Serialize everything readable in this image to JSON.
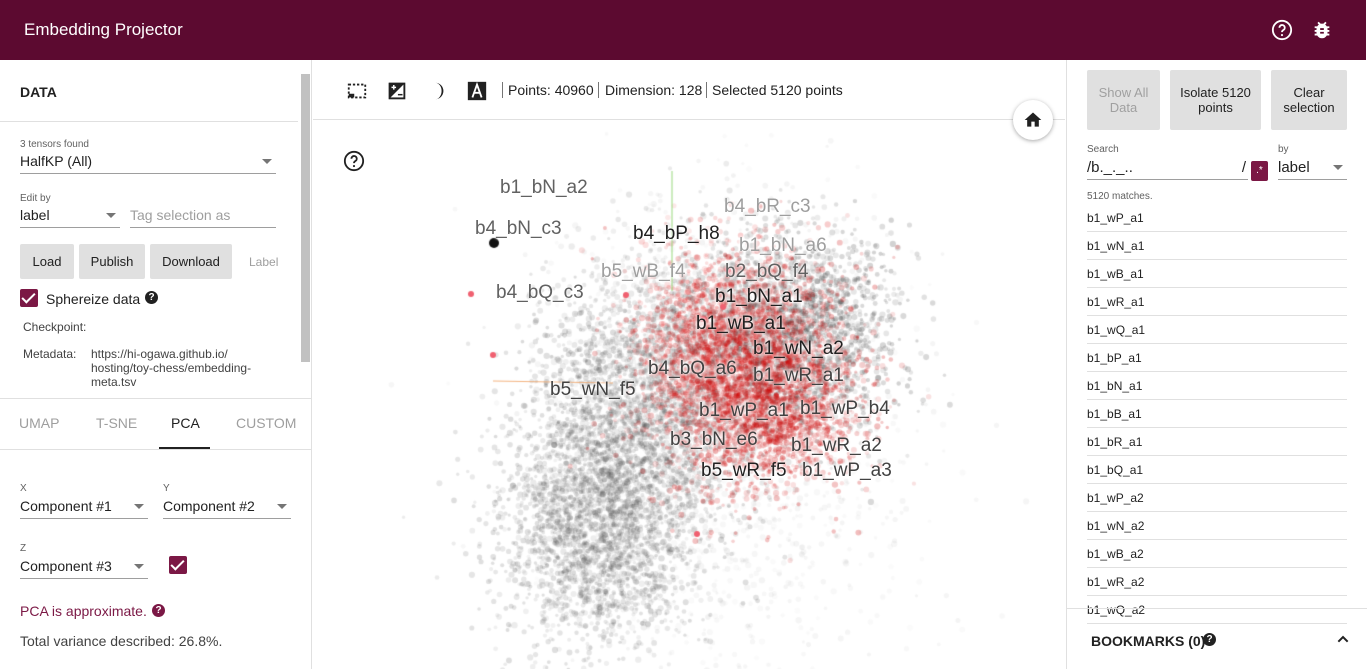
{
  "app": {
    "title": "Embedding Projector",
    "header_icons": [
      "help-icon",
      "bug-icon"
    ],
    "accent_color": "#5c0a30"
  },
  "data_panel": {
    "title": "DATA",
    "tensors_found": "3 tensors found",
    "tensor_value": "HalfKP (All)",
    "edit_by_label": "Edit by",
    "edit_by_value": "label",
    "tag_placeholder": "Tag selection as",
    "buttons": {
      "load": "Load",
      "publish": "Publish",
      "download": "Download",
      "label": "Label"
    },
    "sphereize_label": "Sphereize data",
    "sphereize_checked": true,
    "checkpoint_label": "Checkpoint:",
    "metadata_label": "Metadata:",
    "metadata_value_lines": [
      "https://hi-ogawa.github.io/",
      "hosting/toy-chess/embedding-",
      "meta.tsv"
    ]
  },
  "projection_tabs": {
    "tabs": [
      "UMAP",
      "T-SNE",
      "PCA",
      "CUSTOM"
    ],
    "active": "PCA"
  },
  "pca": {
    "x_label": "X",
    "x_value": "Component #1",
    "y_label": "Y",
    "y_value": "Component #2",
    "z_label": "Z",
    "z_value": "Component #3",
    "z_enabled": true,
    "approx_text": "PCA is approximate.",
    "variance_text": "Total variance described: 26.8%."
  },
  "toolbar": {
    "icons": [
      "select-rectangle-icon",
      "night-mode-icon",
      "brightness-icon",
      "label-icon"
    ],
    "points": "Points: 40960",
    "dimension": "Dimension: 128",
    "selected": "Selected 5120 points"
  },
  "plot_labels": [
    {
      "text": "b1_bN_a2",
      "color": "#616161"
    },
    {
      "text": "b4_bN_c3",
      "color": "#616161"
    },
    {
      "text": "b4_bR_c3",
      "color": "#9e9e9e"
    },
    {
      "text": "b4_bP_h8",
      "color": "#212121"
    },
    {
      "text": "b1_bN_a6",
      "color": "#9e9e9e"
    },
    {
      "text": "b5_wB_f4",
      "color": "#9e9e9e"
    },
    {
      "text": "b2_bQ_f4",
      "color": "#616161"
    },
    {
      "text": "b4_bQ_c3",
      "color": "#616161"
    },
    {
      "text": "b1_bN_a1",
      "color": "#212121"
    },
    {
      "text": "b1_wB_a1",
      "color": "#212121"
    },
    {
      "text": "b1_wN_a2",
      "color": "#212121"
    },
    {
      "text": "b4_bQ_a6",
      "color": "#424242"
    },
    {
      "text": "b1_wR_a1",
      "color": "#424242"
    },
    {
      "text": "b5_wN_f5",
      "color": "#424242"
    },
    {
      "text": "b1_wP_a1",
      "color": "#424242"
    },
    {
      "text": "b1_wP_b4",
      "color": "#424242"
    },
    {
      "text": "b3_bN_e6",
      "color": "#424242"
    },
    {
      "text": "b1_wR_a2",
      "color": "#424242"
    },
    {
      "text": "b5_wR_f5",
      "color": "#212121"
    },
    {
      "text": "b1_wP_a3",
      "color": "#424242"
    }
  ],
  "inspector": {
    "show_all": "Show All Data",
    "isolate": "Isolate 5120 points",
    "clear": "Clear selection",
    "search_label": "Search",
    "search_value": "/b._._..",
    "regex_slash": "/",
    "regex_toggle": ".*",
    "by_label": "by",
    "by_value": "label",
    "matches": "5120 matches.",
    "results": [
      "b1_wP_a1",
      "b1_wN_a1",
      "b1_wB_a1",
      "b1_wR_a1",
      "b1_wQ_a1",
      "b1_bP_a1",
      "b1_bN_a1",
      "b1_bB_a1",
      "b1_bR_a1",
      "b1_bQ_a1",
      "b1_wP_a2",
      "b1_wN_a2",
      "b1_wB_a2",
      "b1_wR_a2",
      "b1_wQ_a2"
    ],
    "bookmarks": "BOOKMARKS (0)"
  }
}
